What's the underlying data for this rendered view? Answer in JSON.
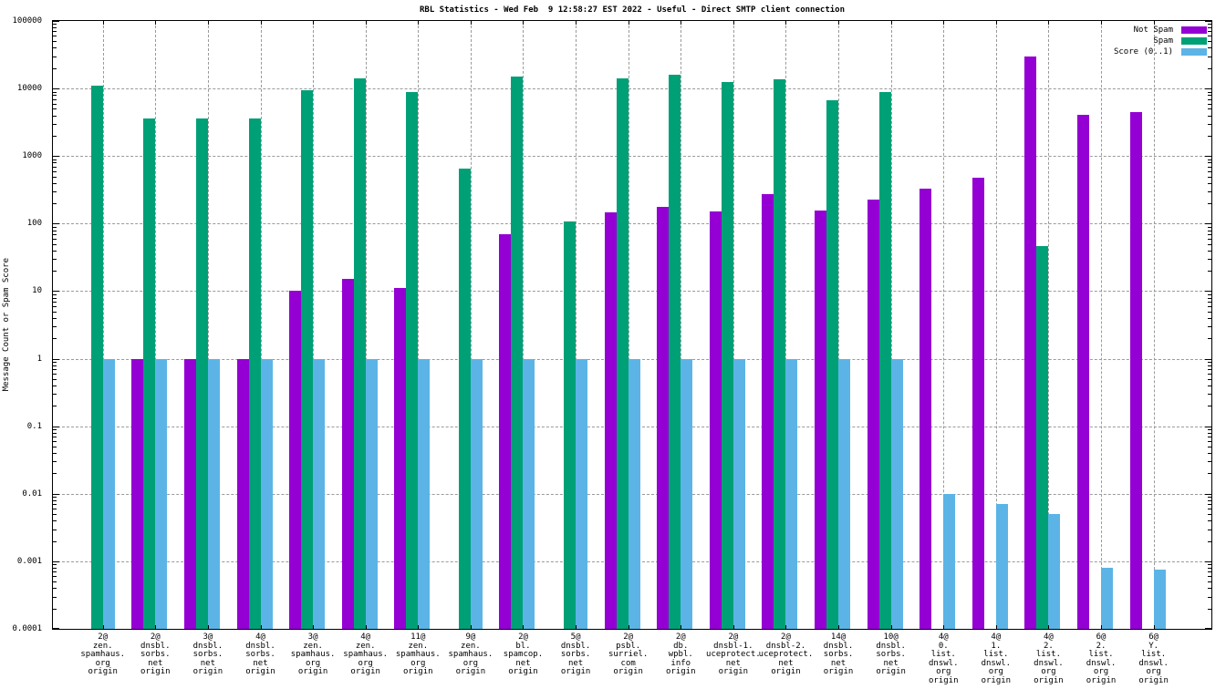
{
  "title": "RBL Statistics - Wed Feb  9 12:58:27 EST 2022 - Useful - Direct SMTP client connection",
  "y_axis_title": "Message Count or Spam Score",
  "legend": {
    "position": "top-right-inside",
    "entries": [
      {
        "label": "Not Spam",
        "color": "#9400d3"
      },
      {
        "label": "Spam",
        "color": "#00a077"
      },
      {
        "label": "Score (0..1)",
        "color": "#5cb4e6"
      }
    ]
  },
  "chart_data": {
    "type": "bar",
    "scale_y": "log10",
    "ylim": [
      0.0001,
      100000
    ],
    "grid": "dashed-gray-major-both-axes",
    "ylabel": "Message Count or Spam Score",
    "yticks": [
      {
        "value": 100000,
        "label": "100000"
      },
      {
        "value": 10000,
        "label": "10000"
      },
      {
        "value": 1000,
        "label": "1000"
      },
      {
        "value": 100,
        "label": "100"
      },
      {
        "value": 10,
        "label": "10"
      },
      {
        "value": 1,
        "label": "1"
      },
      {
        "value": 0.1,
        "label": "0.1"
      },
      {
        "value": 0.01,
        "label": "0.01"
      },
      {
        "value": 0.001,
        "label": "0.001"
      },
      {
        "value": 0.0001,
        "label": "0.0001"
      }
    ],
    "categories": [
      "2@\nzen.\nspamhaus.\norg\norigin",
      "2@\ndnsbl.\nsorbs.\nnet\norigin",
      "3@\ndnsbl.\nsorbs.\nnet\norigin",
      "4@\ndnsbl.\nsorbs.\nnet\norigin",
      "3@\nzen.\nspamhaus.\norg\norigin",
      "4@\nzen.\nspamhaus.\norg\norigin",
      "11@\nzen.\nspamhaus.\norg\norigin",
      "9@\nzen.\nspamhaus.\norg\norigin",
      "2@\nbl.\nspamcop.\nnet\norigin",
      "5@\ndnsbl.\nsorbs.\nnet\norigin",
      "2@\npsbl.\nsurriel.\ncom\norigin",
      "2@\ndb.\nwpbl.\ninfo\norigin",
      "2@\ndnsbl-1.\nuceprotect.\nnet\norigin",
      "2@\ndnsbl-2.\nuceprotect.\nnet\norigin",
      "14@\ndnsbl.\nsorbs.\nnet\norigin",
      "10@\ndnsbl.\nsorbs.\nnet\norigin",
      "4@\n0.\nlist.\ndnswl.\norg\norigin",
      "4@\n1.\nlist.\ndnswl.\norg\norigin",
      "4@\n2.\nlist.\ndnswl.\norg\norigin",
      "6@\n2.\nlist.\ndnswl.\norg\norigin",
      "6@\nY.\nlist.\ndnswl.\norg\norigin"
    ],
    "series": [
      {
        "name": "Not Spam",
        "color": "#9400d3",
        "values": [
          null,
          1,
          1,
          1,
          10,
          15,
          11,
          null,
          70,
          null,
          145,
          175,
          150,
          270,
          155,
          230,
          330,
          480,
          30000,
          4100,
          4500
        ]
      },
      {
        "name": "Spam",
        "color": "#00a077",
        "values": [
          11000,
          3600,
          3600,
          3600,
          9500,
          14000,
          8800,
          660,
          15000,
          107,
          14300,
          15800,
          12300,
          13500,
          6800,
          8800,
          null,
          null,
          47,
          null,
          null
        ]
      },
      {
        "name": "Score (0..1)",
        "color": "#5cb4e6",
        "values": [
          1,
          1,
          1,
          1,
          1,
          1,
          1,
          1,
          1,
          1,
          1,
          1,
          1,
          1,
          1,
          1,
          0.01,
          0.007,
          0.005,
          0.0008,
          0.00075
        ]
      }
    ]
  }
}
